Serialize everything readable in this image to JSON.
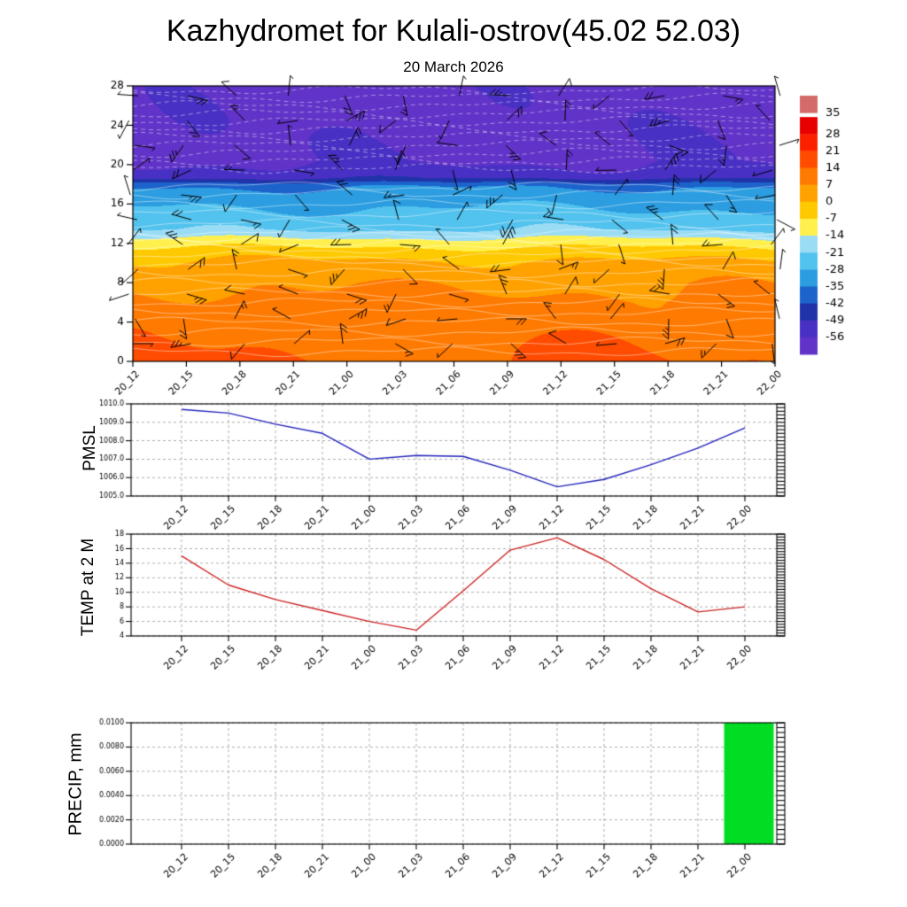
{
  "page_title": "Kazhydromet for Kulali-ostrov(45.02 52.03)",
  "date_label": "20 March 2026",
  "time_labels": [
    "20_12",
    "20_15",
    "20_18",
    "20_21",
    "21_00",
    "21_03",
    "21_06",
    "21_09",
    "21_12",
    "21_15",
    "21_18",
    "21_21",
    "22_00"
  ],
  "chart_data": [
    {
      "type": "heatmap",
      "name": "upper-air-temperature-cross-section",
      "description": "time-height filled temperature contours with wind barbs overlay",
      "ylim": [
        0,
        28
      ],
      "ytick_labels": [
        "0",
        "4",
        "8",
        "12",
        "16",
        "20",
        "24",
        "28"
      ],
      "colorbar_labels": [
        "35",
        "28",
        "21",
        "14",
        "7",
        "0",
        "-7",
        "-14",
        "-21",
        "-28",
        "-35",
        "-42",
        "-49",
        "-56"
      ],
      "colorbar_colors": [
        "#d46a6a",
        "#e80000",
        "#fb2000",
        "#ff4c00",
        "#ff7a00",
        "#ffa200",
        "#ffc900",
        "#fff04d",
        "#9bdcf5",
        "#52c2ee",
        "#2b9de0",
        "#1d63cc",
        "#2133a8",
        "#4930c4",
        "#6133c8"
      ],
      "temperature_profile": [
        [
          0,
          13
        ],
        [
          3,
          11.5
        ],
        [
          6,
          9
        ],
        [
          8,
          6
        ],
        [
          10,
          1.5
        ],
        [
          10.8,
          -2
        ],
        [
          11.5,
          -6
        ],
        [
          12.2,
          -11
        ],
        [
          12.8,
          -16
        ],
        [
          13.5,
          -22
        ],
        [
          14.5,
          -25
        ],
        [
          16,
          -29
        ],
        [
          17,
          -32
        ],
        [
          17.9,
          -36
        ],
        [
          18.3,
          -43
        ],
        [
          18.7,
          -50
        ],
        [
          19.3,
          -54
        ],
        [
          20.5,
          -57
        ],
        [
          28,
          -58
        ]
      ],
      "wind_barbs": true,
      "contour_line_color": "#ffffff"
    },
    {
      "type": "line",
      "ylabel": "PMSL",
      "color": "#2222bb",
      "ylim": [
        1005,
        1010
      ],
      "ytick_labels": [
        "1005.0",
        "1006.0",
        "1007.0",
        "1008.0",
        "1009.0",
        "1010.0"
      ],
      "values": [
        1009.7,
        1009.5,
        1008.9,
        1008.4,
        1007.0,
        1007.2,
        1007.15,
        1006.4,
        1005.5,
        1005.9,
        1006.7,
        1007.6,
        1008.7
      ]
    },
    {
      "type": "line",
      "ylabel": "TEMP at 2 M",
      "color": "#cc2222",
      "ylim": [
        4,
        18
      ],
      "ytick_labels": [
        "4",
        "6",
        "8",
        "10",
        "12",
        "14",
        "16",
        "18"
      ],
      "values": [
        15,
        11,
        9,
        7.5,
        6,
        4.8,
        10.2,
        15.8,
        17.5,
        14.5,
        10.5,
        7.3,
        8
      ]
    },
    {
      "type": "bar",
      "ylabel": "PRECIP, mm",
      "color": "#00dd22",
      "ylim": [
        0,
        0.01
      ],
      "ytick_labels": [
        "0.0000",
        "0.0020",
        "0.0040",
        "0.0060",
        "0.0080",
        "0.0100"
      ],
      "values": [
        0,
        0,
        0,
        0,
        0,
        0,
        0,
        0,
        0,
        0,
        0,
        0,
        0.01
      ]
    }
  ]
}
